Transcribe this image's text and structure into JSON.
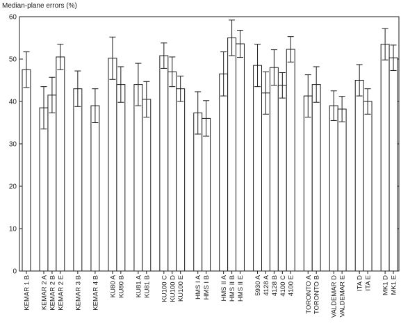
{
  "chart_data": {
    "type": "bar",
    "title": "",
    "xlabel": "",
    "ylabel": "Median-plane errors (%)",
    "ylim": [
      0,
      60
    ],
    "yticks": [
      0,
      10,
      20,
      30,
      40,
      50,
      60
    ],
    "error_bars": true,
    "grid": false,
    "groups": [
      {
        "bars": [
          {
            "label": "KEMAR 1 B",
            "value": 47.5,
            "err": 4.2
          }
        ]
      },
      {
        "bars": [
          {
            "label": "KEMAR 2 A",
            "value": 38.5,
            "err": 5.0
          },
          {
            "label": "KEMAR 2 B",
            "value": 41.5,
            "err": 4.2
          },
          {
            "label": "KEMAR 2 E",
            "value": 50.5,
            "err": 3.0
          }
        ]
      },
      {
        "bars": [
          {
            "label": "KEMAR 3 B",
            "value": 43.0,
            "err": 4.2
          }
        ]
      },
      {
        "bars": [
          {
            "label": "KEMAR 4 B",
            "value": 39.0,
            "err": 4.0
          }
        ]
      },
      {
        "bars": [
          {
            "label": "KU80 A",
            "value": 50.2,
            "err": 5.0
          },
          {
            "label": "KU80 B",
            "value": 44.0,
            "err": 4.2
          }
        ]
      },
      {
        "bars": [
          {
            "label": "KU81 A",
            "value": 44.0,
            "err": 5.0
          },
          {
            "label": "KU81 B",
            "value": 40.5,
            "err": 4.2
          }
        ]
      },
      {
        "bars": [
          {
            "label": "KU100 C",
            "value": 50.8,
            "err": 3.0
          },
          {
            "label": "KU100 D",
            "value": 47.0,
            "err": 3.5
          },
          {
            "label": "KU100 E",
            "value": 43.0,
            "err": 3.0
          }
        ]
      },
      {
        "bars": [
          {
            "label": "HMS I A",
            "value": 37.3,
            "err": 5.0
          },
          {
            "label": "HMS I B",
            "value": 36.0,
            "err": 4.2
          }
        ]
      },
      {
        "bars": [
          {
            "label": "HMS II A",
            "value": 46.5,
            "err": 5.2
          },
          {
            "label": "HMS II B",
            "value": 55.0,
            "err": 4.2
          },
          {
            "label": "HMS II E",
            "value": 53.6,
            "err": 3.2
          }
        ]
      },
      {
        "bars": [
          {
            "label": "5930 A",
            "value": 48.5,
            "err": 5.0
          },
          {
            "label": "4128 A",
            "value": 42.0,
            "err": 5.0
          },
          {
            "label": "4128 B",
            "value": 48.0,
            "err": 4.2
          },
          {
            "label": "4100 C",
            "value": 43.8,
            "err": 3.0
          },
          {
            "label": "4100 E",
            "value": 52.3,
            "err": 3.0
          }
        ]
      },
      {
        "bars": [
          {
            "label": "TORONTO A",
            "value": 41.3,
            "err": 5.0
          },
          {
            "label": "TORONTO B",
            "value": 44.0,
            "err": 4.2
          }
        ]
      },
      {
        "bars": [
          {
            "label": "VALDEMAR D",
            "value": 39.0,
            "err": 3.5
          },
          {
            "label": "VALDEMAR E",
            "value": 38.2,
            "err": 3.0
          }
        ]
      },
      {
        "bars": [
          {
            "label": "ITA D",
            "value": 45.0,
            "err": 3.7
          },
          {
            "label": "ITA E",
            "value": 40.0,
            "err": 3.0
          }
        ]
      },
      {
        "bars": [
          {
            "label": "MK1 D",
            "value": 53.5,
            "err": 3.7
          },
          {
            "label": "MK1 E",
            "value": 50.3,
            "err": 3.0
          }
        ]
      }
    ]
  }
}
